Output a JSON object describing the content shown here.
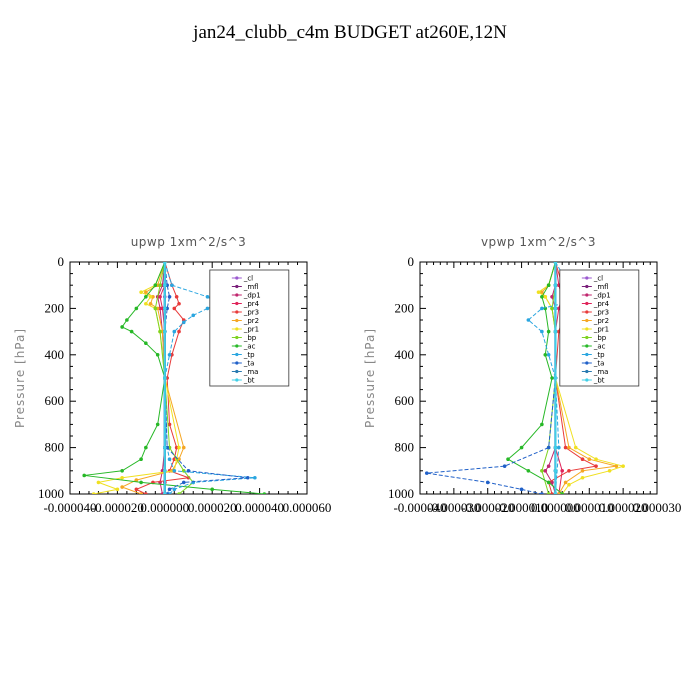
{
  "title": "jan24_clubb_c4m  BUDGET at260E,12N",
  "colors": {
    "_cl": "#9b59d0",
    "_mfl": "#7a1f7a",
    "_dp1": "#c0266e",
    "_pr4": "#e0245a",
    "_pr3": "#e83a3a",
    "_pr2": "#f5a623",
    "_pr1": "#f0e020",
    "_bp": "#7ed321",
    "_ac": "#27b827",
    "_tp": "#2aa6e0",
    "_ta": "#2060c8",
    "_ma": "#2a7ab0",
    "_bt": "#3fd0e8"
  },
  "chart_data": [
    {
      "type": "line",
      "title": "upwp   1xm^2/s^3",
      "ylabel": "Pressure [hPa]",
      "xlabel": "",
      "ylim": [
        1000,
        0
      ],
      "xlim": [
        -4e-05,
        6e-05
      ],
      "x_tick_labels": [
        "-0.000040",
        "-0.000020",
        "0.000000",
        "0.000020",
        "0.000040",
        "0.000060"
      ],
      "x_ticks": [
        -4e-05,
        -2e-05,
        0,
        2e-05,
        4e-05,
        6e-05
      ],
      "y_ticks": [
        0,
        200,
        400,
        600,
        800,
        1000
      ],
      "y_tick_labels": [
        "0",
        "200",
        "400",
        "600",
        "800",
        "1000"
      ],
      "legend_placement": "top-right",
      "series": [
        {
          "name": "_cl",
          "y": [
            0,
            100,
            150,
            200,
            300,
            500,
            800,
            900,
            950,
            1000
          ],
          "x": [
            0,
            0,
            0,
            0,
            0,
            0,
            0,
            0,
            0,
            0
          ]
        },
        {
          "name": "_mfl",
          "y": [
            0,
            100,
            200,
            300,
            500,
            800,
            900,
            1000
          ],
          "x": [
            0,
            0,
            0,
            0,
            0,
            0,
            0,
            0
          ]
        },
        {
          "name": "_dp1",
          "y": [
            0,
            100,
            150,
            200,
            300,
            500,
            800,
            900,
            950,
            1000
          ],
          "x": [
            0,
            -1e-06,
            -3e-06,
            -2e-06,
            -1e-06,
            0,
            0,
            -1e-06,
            -2e-06,
            -1e-06
          ]
        },
        {
          "name": "_pr4",
          "y": [
            0,
            100,
            150,
            200,
            300,
            500,
            800,
            900,
            950,
            1000
          ],
          "x": [
            0,
            0,
            -2e-06,
            -1e-06,
            0,
            0,
            0,
            0,
            0,
            0
          ]
        },
        {
          "name": "_pr3",
          "y": [
            0,
            100,
            150,
            180,
            200,
            250,
            300,
            400,
            500,
            700,
            800,
            850,
            900,
            930,
            950,
            980,
            1000
          ],
          "x": [
            0,
            3e-06,
            5e-06,
            6e-06,
            4e-06,
            8e-06,
            6e-06,
            3e-06,
            1e-06,
            2e-06,
            5e-06,
            4e-06,
            2e-06,
            1e-05,
            -5e-06,
            -1.2e-05,
            -8e-06
          ]
        },
        {
          "name": "_pr2",
          "y": [
            0,
            100,
            130,
            150,
            180,
            200,
            300,
            500,
            800,
            850,
            900,
            940,
            970,
            1000
          ],
          "x": [
            0,
            -3e-06,
            -8e-06,
            -5e-06,
            -6e-06,
            -3e-06,
            -1e-06,
            0,
            8e-06,
            6e-06,
            3e-06,
            -1.2e-05,
            -1.8e-05,
            -1e-05
          ]
        },
        {
          "name": "_pr1",
          "y": [
            0,
            100,
            130,
            150,
            180,
            200,
            300,
            500,
            800,
            850,
            900,
            930,
            950,
            980,
            1000
          ],
          "x": [
            0,
            -4e-06,
            -1e-05,
            -6e-06,
            -8e-06,
            -4e-06,
            -2e-06,
            0,
            6e-06,
            5e-06,
            4e-06,
            -1.8e-05,
            -2.8e-05,
            -2e-05,
            -3e-05
          ]
        },
        {
          "name": "_bp",
          "y": [
            0,
            100,
            200,
            300,
            500,
            800,
            900,
            950,
            1000
          ],
          "x": [
            0,
            -2e-06,
            -4e-06,
            -2e-06,
            0,
            2e-06,
            8e-06,
            1.2e-05,
            6e-06
          ]
        },
        {
          "name": "_ac",
          "y": [
            0,
            100,
            150,
            200,
            250,
            280,
            300,
            350,
            400,
            500,
            700,
            800,
            850,
            900,
            920,
            950,
            980,
            1000
          ],
          "x": [
            0,
            -4e-06,
            -8e-06,
            -1.2e-05,
            -1.6e-05,
            -1.8e-05,
            -1.4e-05,
            -8e-06,
            -3e-06,
            0,
            -3e-06,
            -8e-06,
            -1e-05,
            -1.8e-05,
            -3.4e-05,
            -1e-05,
            2e-05,
            4.2e-05
          ]
        },
        {
          "name": "_tp",
          "y": [
            0,
            100,
            150,
            180,
            200,
            230,
            260,
            300,
            400,
            500,
            800,
            850,
            900,
            930,
            950,
            980,
            1000
          ],
          "x": [
            0,
            3e-06,
            1.8e-05,
            2.2e-05,
            1.8e-05,
            1.2e-05,
            8e-06,
            4e-06,
            2e-06,
            0,
            1e-06,
            2e-06,
            4e-06,
            3.8e-05,
            1.2e-05,
            4e-06,
            2e-06
          ]
        },
        {
          "name": "_ta",
          "y": [
            0,
            100,
            150,
            200,
            300,
            500,
            800,
            900,
            930,
            950,
            980,
            1000
          ],
          "x": [
            0,
            1e-06,
            2e-06,
            1e-06,
            0,
            0,
            1e-06,
            1e-05,
            3.5e-05,
            8e-06,
            2e-06,
            1e-06
          ]
        },
        {
          "name": "_ma",
          "y": [
            0,
            100,
            200,
            300,
            500,
            800,
            900,
            1000
          ],
          "x": [
            0,
            0,
            0,
            0,
            0,
            0,
            0,
            0
          ]
        },
        {
          "name": "_bt",
          "y": [
            0,
            100,
            200,
            300,
            500,
            800,
            900,
            1000
          ],
          "x": [
            0,
            0,
            0,
            0,
            0,
            0,
            0,
            0
          ]
        }
      ]
    },
    {
      "type": "line",
      "title": "vpwp   1xm^2/s^3",
      "ylabel": "Pressure [hPa]",
      "xlabel": "",
      "ylim": [
        1000,
        0
      ],
      "xlim": [
        -4e-05,
        3e-05
      ],
      "x_tick_labels": [
        "-0.000040",
        "-0.000030",
        "-0.000020",
        "-0.000010",
        "0.000000",
        "0.000010",
        "0.000020",
        "0.000030"
      ],
      "x_ticks": [
        -4e-05,
        -3e-05,
        -2e-05,
        -1e-05,
        0,
        1e-05,
        2e-05,
        3e-05
      ],
      "y_ticks": [
        0,
        200,
        400,
        600,
        800,
        1000
      ],
      "y_tick_labels": [
        "0",
        "200",
        "400",
        "600",
        "800",
        "1000"
      ],
      "legend_placement": "top-right",
      "series": [
        {
          "name": "_cl",
          "y": [
            0,
            100,
            200,
            300,
            500,
            800,
            900,
            1000
          ],
          "x": [
            0,
            0,
            0,
            0,
            0,
            0,
            0,
            0
          ]
        },
        {
          "name": "_mfl",
          "y": [
            0,
            100,
            200,
            300,
            500,
            800,
            900,
            1000
          ],
          "x": [
            0,
            0,
            0,
            0,
            0,
            0,
            0,
            0
          ]
        },
        {
          "name": "_dp1",
          "y": [
            0,
            100,
            150,
            200,
            300,
            500,
            800,
            880,
            900,
            950,
            1000
          ],
          "x": [
            0,
            0,
            -1e-06,
            0,
            0,
            0,
            0,
            -2e-06,
            -3e-06,
            -1e-06,
            0
          ]
        },
        {
          "name": "_pr4",
          "y": [
            0,
            100,
            150,
            200,
            300,
            500,
            800,
            900,
            1000
          ],
          "x": [
            0,
            1e-06,
            2e-06,
            1e-06,
            0,
            0,
            0,
            2e-06,
            1e-06
          ]
        },
        {
          "name": "_pr3",
          "y": [
            0,
            100,
            150,
            200,
            250,
            300,
            500,
            800,
            850,
            880,
            900,
            950,
            1000
          ],
          "x": [
            0,
            2e-06,
            4e-06,
            3e-06,
            2e-06,
            1e-06,
            0,
            3e-06,
            8e-06,
            1.2e-05,
            4e-06,
            -2e-06,
            -1e-06
          ]
        },
        {
          "name": "_pr2",
          "y": [
            0,
            100,
            130,
            150,
            200,
            300,
            500,
            800,
            850,
            880,
            900,
            950,
            1000
          ],
          "x": [
            0,
            -2e-06,
            -4e-06,
            -3e-06,
            -1e-06,
            0,
            0,
            4e-06,
            1e-05,
            1.8e-05,
            8e-06,
            3e-06,
            1e-06
          ]
        },
        {
          "name": "_pr1",
          "y": [
            0,
            100,
            130,
            150,
            200,
            300,
            500,
            800,
            850,
            880,
            900,
            930,
            960,
            1000
          ],
          "x": [
            0,
            -2e-06,
            -5e-06,
            -3e-06,
            -1e-06,
            0,
            0,
            6e-06,
            1.2e-05,
            2e-05,
            1.6e-05,
            8e-06,
            4e-06,
            2e-06
          ]
        },
        {
          "name": "_bp",
          "y": [
            0,
            100,
            200,
            300,
            500,
            800,
            900,
            1000
          ],
          "x": [
            0,
            0,
            -1e-06,
            0,
            0,
            -2e-06,
            -4e-06,
            -2e-06
          ]
        },
        {
          "name": "_ac",
          "y": [
            0,
            100,
            150,
            200,
            300,
            400,
            500,
            700,
            800,
            850,
            900,
            950,
            1000
          ],
          "x": [
            0,
            -2e-06,
            -4e-06,
            -3e-06,
            -2e-06,
            -3e-06,
            -1e-06,
            -4e-06,
            -1e-05,
            -1.4e-05,
            -8e-06,
            -2e-06,
            2e-06
          ]
        },
        {
          "name": "_tp",
          "y": [
            0,
            100,
            150,
            180,
            200,
            250,
            300,
            400,
            500,
            800,
            1000
          ],
          "x": [
            0,
            4e-06,
            6e-06,
            2e-06,
            -4e-06,
            -8e-06,
            -4e-06,
            -2e-06,
            0,
            1e-06,
            0
          ]
        },
        {
          "name": "_ta",
          "y": [
            0,
            100,
            200,
            300,
            500,
            800,
            880,
            910,
            950,
            980,
            1000
          ],
          "x": [
            0,
            0,
            0,
            0,
            0,
            -2e-06,
            -1.5e-05,
            -3.8e-05,
            -2e-05,
            -1e-05,
            -4e-06
          ]
        },
        {
          "name": "_ma",
          "y": [
            0,
            100,
            200,
            300,
            500,
            800,
            900,
            1000
          ],
          "x": [
            0,
            0,
            0,
            0,
            0,
            0,
            0,
            0
          ]
        },
        {
          "name": "_bt",
          "y": [
            0,
            100,
            200,
            300,
            500,
            800,
            900,
            1000
          ],
          "x": [
            0,
            0,
            0,
            0,
            0,
            0,
            0,
            0
          ]
        }
      ]
    }
  ]
}
